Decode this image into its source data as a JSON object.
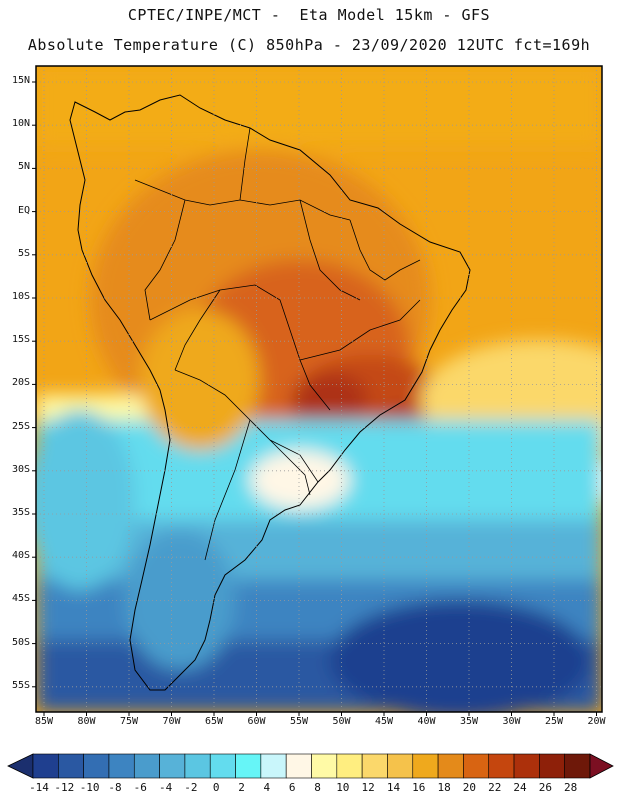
{
  "header": {
    "line1": "CPTEC/INPE/MCT -  Eta Model 15km - GFS",
    "line2": "Absolute Temperature (C) 850hPa - 23/09/2020 12UTC fct=169h"
  },
  "map": {
    "lat_labels": [
      "15N",
      "10N",
      "5N",
      "EQ",
      "5S",
      "10S",
      "15S",
      "20S",
      "25S",
      "30S",
      "35S",
      "40S",
      "45S",
      "50S",
      "55S"
    ],
    "lon_labels": [
      "85W",
      "80W",
      "75W",
      "70W",
      "65W",
      "60W",
      "55W",
      "50W",
      "45W",
      "40W",
      "35W",
      "30W",
      "25W",
      "20W"
    ],
    "background_color": "#f2a516",
    "gridline_color": "#9a9a9a"
  },
  "colorbar": {
    "tick_labels": [
      "-14",
      "-12",
      "-10",
      "-8",
      "-6",
      "-4",
      "-2",
      "0",
      "2",
      "4",
      "6",
      "8",
      "10",
      "12",
      "14",
      "16",
      "18",
      "20",
      "22",
      "24",
      "26",
      "28"
    ],
    "colors": [
      "#1f3f8f",
      "#2a58a2",
      "#336eb3",
      "#3d84c1",
      "#4a9ccc",
      "#57b2d8",
      "#5bc6e2",
      "#63dcee",
      "#66f5f7",
      "#c9f6fb",
      "#fff7e6",
      "#fffaa6",
      "#ffee80",
      "#fbd86b",
      "#f5c24b",
      "#efa91d",
      "#e48a1a",
      "#d86412",
      "#c5460e",
      "#ac300b",
      "#8e2009",
      "#6e1809"
    ],
    "under_color": "#1b2f6e",
    "over_color": "#7b0f22"
  }
}
